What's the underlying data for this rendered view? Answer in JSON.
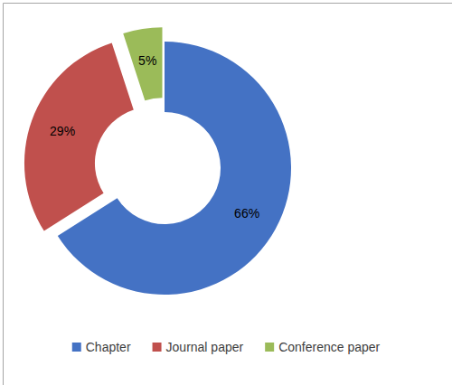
{
  "chart_data": {
    "type": "donut",
    "categories": [
      "Chapter",
      "Journal paper",
      "Conference paper"
    ],
    "values": [
      66,
      29,
      5
    ],
    "value_labels": [
      "66%",
      "29%",
      "5%"
    ],
    "colors": [
      "#4472c4",
      "#c0504d",
      "#9bbb59"
    ],
    "data_labels": true,
    "legend": "bottom"
  }
}
